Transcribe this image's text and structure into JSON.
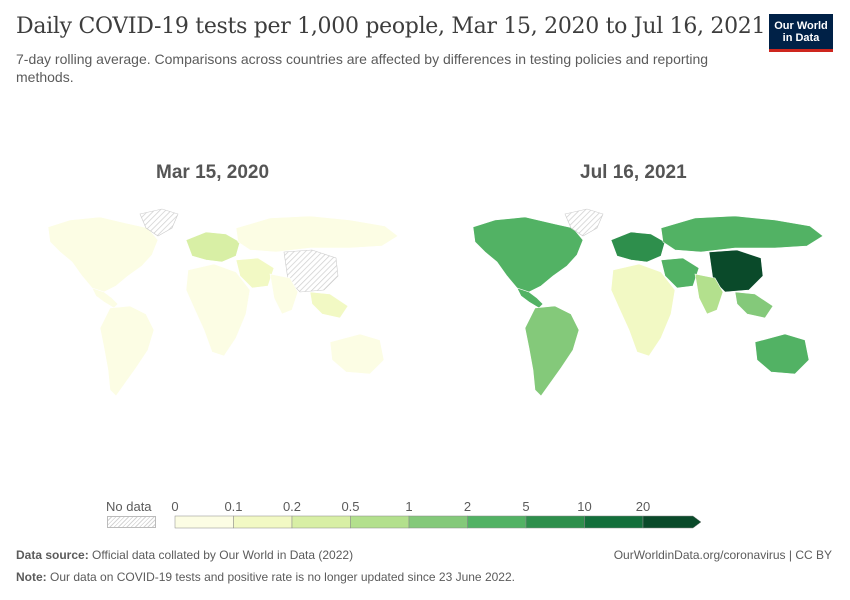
{
  "header": {
    "title": "Daily COVID-19 tests per 1,000 people, Mar 15, 2020 to Jul 16, 2021",
    "subtitle": "7-day rolling average. Comparisons across countries are affected by differences in testing policies and reporting methods.",
    "logo_line1": "Our World",
    "logo_line2": "in Data"
  },
  "maps": {
    "left_date": "Mar 15, 2020",
    "right_date": "Jul 16, 2021"
  },
  "legend": {
    "no_data_label": "No data",
    "thresholds": [
      "0",
      "0.1",
      "0.2",
      "0.5",
      "1",
      "2",
      "5",
      "10",
      "20"
    ],
    "colors": [
      "#fcfde4",
      "#f2f9c4",
      "#d8efa5",
      "#b3e08d",
      "#84c97a",
      "#52b264",
      "#2e8f4c",
      "#136f3b",
      "#0a4a2a"
    ]
  },
  "footer": {
    "source_label": "Data source:",
    "source_text": "Official data collated by Our World in Data (2022)",
    "url_text": "OurWorldinData.org/coronavirus | CC BY",
    "note_label": "Note:",
    "note_text": "Our data on COVID-19 tests and positive rate is no longer updated since 23 June 2022."
  },
  "chart_data": {
    "type": "choropleth",
    "title": "Daily COVID-19 tests per 1,000 people, Mar 15, 2020 to Jul 16, 2021",
    "legend_bins": [
      0,
      0.1,
      0.2,
      0.5,
      1,
      2,
      5,
      10,
      20
    ],
    "panels": [
      {
        "date": "Mar 15, 2020",
        "regions": {
          "north-america": 0,
          "greenland": null,
          "south-america": 0,
          "europe": 0.2,
          "africa": 0,
          "russia": 0,
          "middle-east": 0.1,
          "china": null,
          "south-asia": 0,
          "southeast-asia": 0.1,
          "australia": 0
        }
      },
      {
        "date": "Jul 16, 2021",
        "regions": {
          "north-america": 2,
          "greenland": null,
          "south-america": 1,
          "europe": 5,
          "africa": 0.1,
          "russia": 2,
          "middle-east": 2,
          "china": 20,
          "south-asia": 0.5,
          "southeast-asia": 1,
          "australia": 2
        }
      }
    ]
  }
}
